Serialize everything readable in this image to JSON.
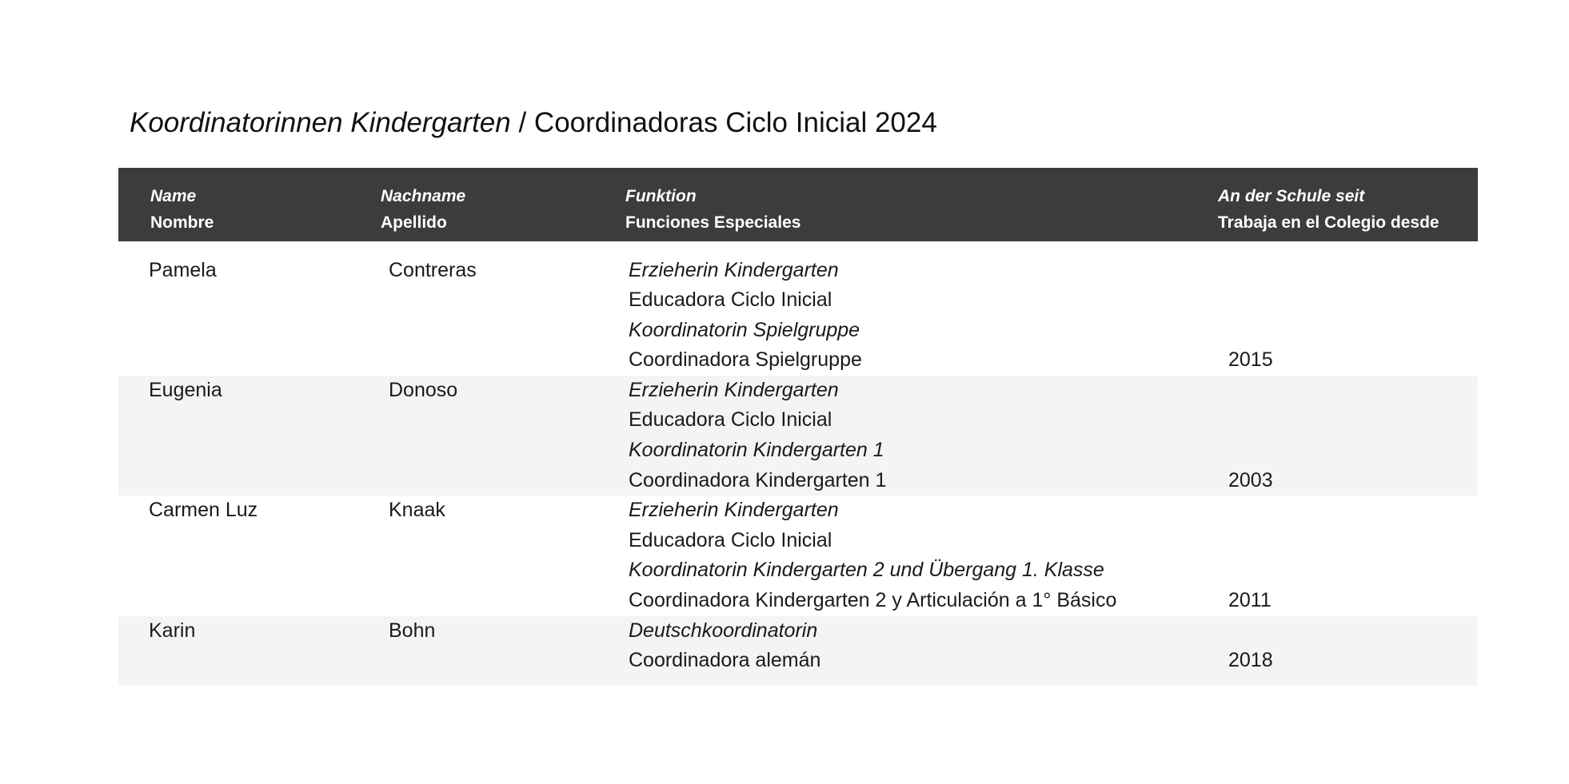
{
  "title": {
    "de": "Koordinatorinnen Kindergarten",
    "separator": " / ",
    "es": "Coordinadoras Ciclo Inicial 2024"
  },
  "headers": [
    {
      "de": "Name",
      "es": "Nombre"
    },
    {
      "de": "Nachname",
      "es": "Apellido"
    },
    {
      "de": "Funktion",
      "es": "Funciones Especiales"
    },
    {
      "de": "An der Schule seit",
      "es": "Trabaja en el Colegio desde"
    }
  ],
  "rows": [
    {
      "first_name": "Pamela",
      "last_name": "Contreras",
      "functions": [
        {
          "text": "Erzieherin Kindergarten",
          "lang": "de"
        },
        {
          "text": "Educadora Ciclo Inicial",
          "lang": "es"
        },
        {
          "text": "Koordinatorin Spielgruppe",
          "lang": "de"
        },
        {
          "text": "Coordinadora Spielgruppe",
          "lang": "es"
        }
      ],
      "since": "2015"
    },
    {
      "first_name": "Eugenia",
      "last_name": "Donoso",
      "functions": [
        {
          "text": "Erzieherin Kindergarten",
          "lang": "de"
        },
        {
          "text": "Educadora Ciclo Inicial",
          "lang": "es"
        },
        {
          "text": "Koordinatorin Kindergarten 1",
          "lang": "de"
        },
        {
          "text": "Coordinadora Kindergarten 1",
          "lang": "es"
        }
      ],
      "since": "2003"
    },
    {
      "first_name": "Carmen Luz",
      "last_name": "Knaak",
      "functions": [
        {
          "text": "Erzieherin Kindergarten",
          "lang": "de"
        },
        {
          "text": "Educadora Ciclo Inicial",
          "lang": "es"
        },
        {
          "text": "Koordinatorin Kindergarten 2 und Übergang 1. Klasse",
          "lang": "de"
        },
        {
          "text": "Coordinadora Kindergarten 2 y Articulación a 1° Básico",
          "lang": "es"
        }
      ],
      "since": "2011"
    },
    {
      "first_name": "Karin",
      "last_name": "Bohn",
      "functions": [
        {
          "text": "Deutschkoordinatorin",
          "lang": "de"
        },
        {
          "text": "Coordinadora alemán",
          "lang": "es"
        }
      ],
      "since": "2018"
    }
  ],
  "colors": {
    "header_bg": "#3c3c3b",
    "header_text": "#ffffff",
    "row_shade": "#f4f4f4"
  }
}
